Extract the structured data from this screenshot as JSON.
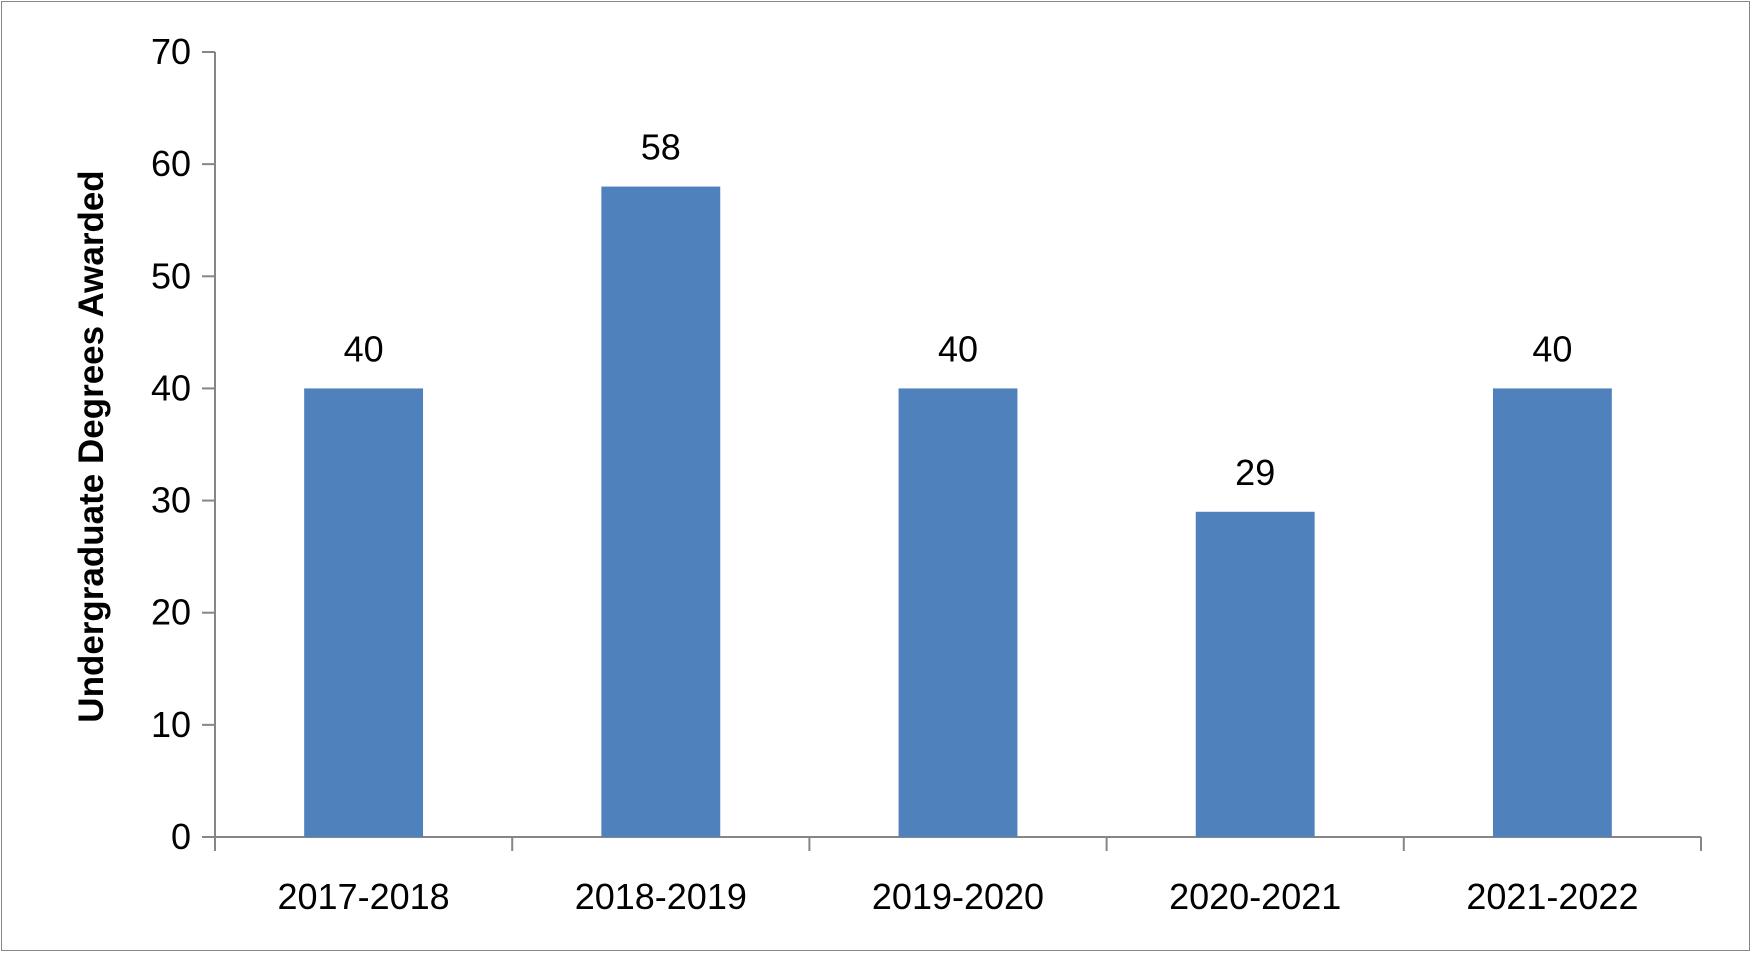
{
  "chart_data": {
    "type": "bar",
    "categories": [
      "2017-2018",
      "2018-2019",
      "2019-2020",
      "2020-2021",
      "2021-2022"
    ],
    "values": [
      40,
      58,
      40,
      29,
      40
    ],
    "data_labels": [
      "40",
      "58",
      "40",
      "29",
      "40"
    ],
    "title": "",
    "xlabel": "",
    "ylabel": "Undergraduate Degrees Awarded",
    "ylim": [
      0,
      70
    ],
    "yticks": [
      0,
      10,
      20,
      30,
      40,
      50,
      60,
      70
    ],
    "grid": false,
    "legend": "none",
    "bar_color": "#4F81BD",
    "axis_color": "#868686"
  }
}
